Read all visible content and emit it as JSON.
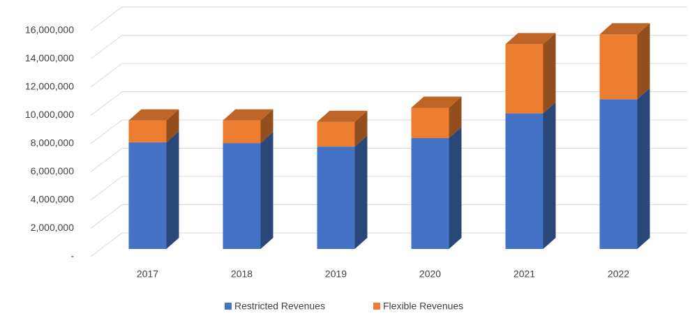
{
  "chart_data": {
    "type": "bar3d_stacked",
    "categories": [
      "2017",
      "2018",
      "2019",
      "2020",
      "2021",
      "2022"
    ],
    "series": [
      {
        "name": "Restricted Revenues",
        "color": "#4472c4",
        "values": [
          7550000,
          7500000,
          7250000,
          7850000,
          9600000,
          10600000
        ]
      },
      {
        "name": "Flexible Revenues",
        "color": "#ed7d31",
        "values": [
          1550000,
          1600000,
          1750000,
          2150000,
          4900000,
          4600000
        ]
      }
    ],
    "ylim": [
      0,
      16000000
    ],
    "yticks": [
      {
        "value": 0,
        "label": "-"
      },
      {
        "value": 2000000,
        "label": "2,000,000"
      },
      {
        "value": 4000000,
        "label": "4,000,000"
      },
      {
        "value": 6000000,
        "label": "6,000,000"
      },
      {
        "value": 8000000,
        "label": "8,000,000"
      },
      {
        "value": 10000000,
        "label": "10,000,000"
      },
      {
        "value": 12000000,
        "label": "12,000,000"
      },
      {
        "value": 14000000,
        "label": "14,000,000"
      },
      {
        "value": 16000000,
        "label": "16,000,000"
      }
    ],
    "grid": true,
    "legend": "bottom"
  }
}
